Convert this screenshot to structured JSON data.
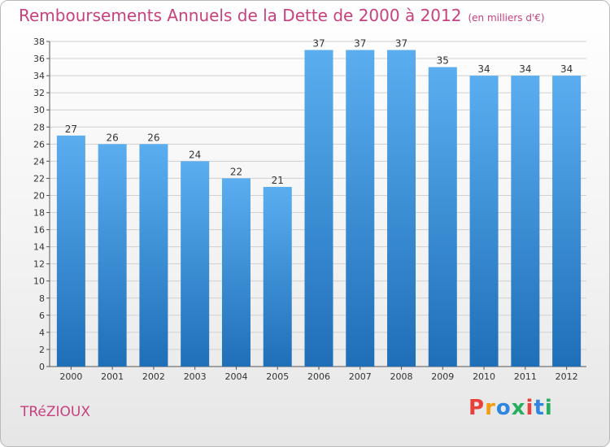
{
  "header": {
    "title": "Remboursements Annuels de la Dette de 2000 à 2012",
    "subtitle": "(en milliers d'€)"
  },
  "footer": {
    "town": "TRéZIOUX",
    "logo": "Proxiti"
  },
  "colors": {
    "accent": "#c8407e",
    "bar_top": "#5aaef0",
    "bar_bottom": "#1f6fb8",
    "grid": "#d0d0d0",
    "logo_letters": [
      "#e8413c",
      "#f39c12",
      "#2e86de",
      "#27ae60",
      "#e8413c",
      "#2e86de",
      "#27ae60"
    ]
  },
  "chart_data": {
    "type": "bar",
    "title": "Remboursements Annuels de la Dette de 2000 à 2012",
    "subtitle": "(en milliers d'€)",
    "categories": [
      "2000",
      "2001",
      "2002",
      "2003",
      "2004",
      "2005",
      "2006",
      "2007",
      "2008",
      "2009",
      "2010",
      "2011",
      "2012"
    ],
    "values": [
      27,
      26,
      26,
      24,
      22,
      21,
      37,
      37,
      37,
      35,
      34,
      34,
      34
    ],
    "ylim": [
      0,
      38
    ],
    "yticks": [
      0,
      2,
      4,
      6,
      8,
      10,
      12,
      14,
      16,
      18,
      20,
      22,
      24,
      26,
      28,
      30,
      32,
      34,
      36,
      38
    ],
    "grid": true,
    "xlabel": "",
    "ylabel": ""
  }
}
